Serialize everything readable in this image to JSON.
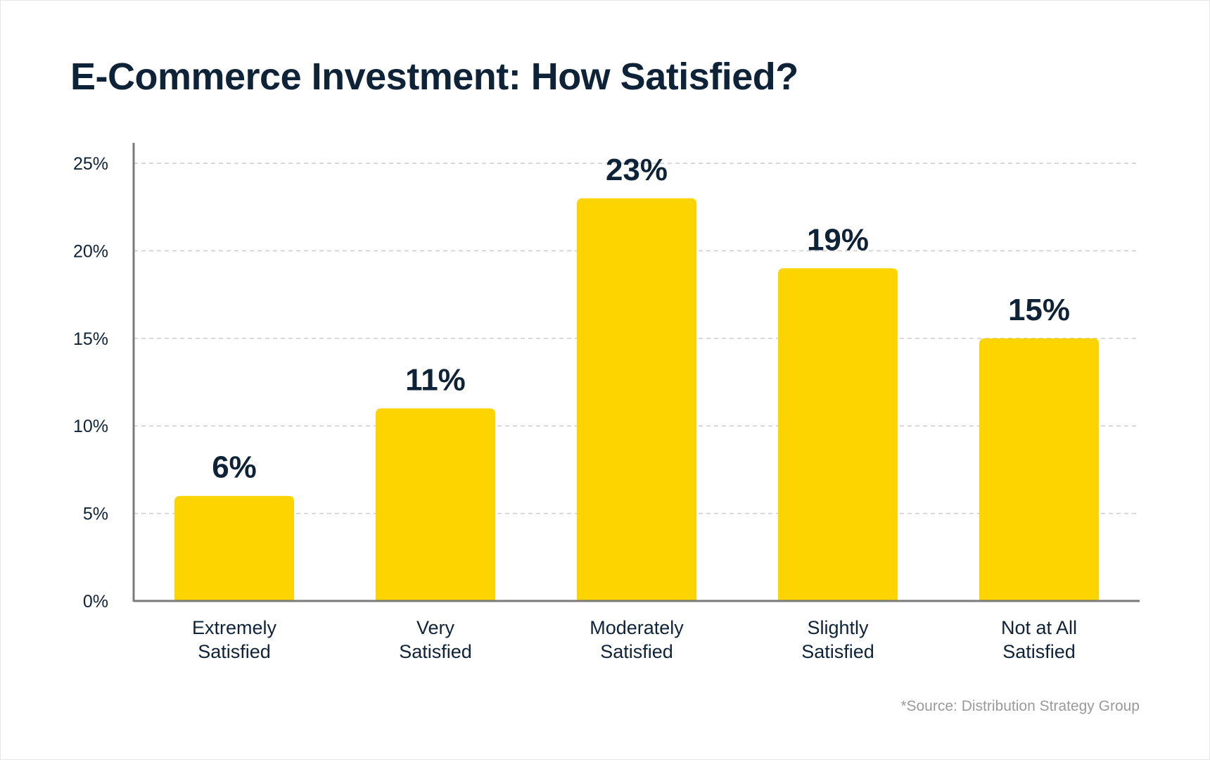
{
  "title": "E-Commerce Investment: How Satisfied?",
  "source": "*Source: Distribution Strategy Group",
  "colors": {
    "bar": "#FDD400",
    "text": "#0f2338",
    "axis": "#7a7a7a",
    "grid": "#cccccc",
    "source": "#9a9a9a"
  },
  "chart_data": {
    "type": "bar",
    "categories": [
      [
        "Extremely",
        "Satisfied"
      ],
      [
        "Very",
        "Satisfied"
      ],
      [
        "Moderately",
        "Satisfied"
      ],
      [
        "Slightly",
        "Satisfied"
      ],
      [
        "Not at All",
        "Satisfied"
      ]
    ],
    "values": [
      6,
      11,
      23,
      19,
      15
    ],
    "data_labels": [
      "6%",
      "11%",
      "23%",
      "19%",
      "15%"
    ],
    "yticks": [
      0,
      5,
      10,
      15,
      20,
      25
    ],
    "ytick_labels": [
      "0%",
      "5%",
      "10%",
      "15%",
      "20%",
      "25%"
    ],
    "ylim": [
      0,
      25
    ],
    "grid": true,
    "legend": false
  }
}
